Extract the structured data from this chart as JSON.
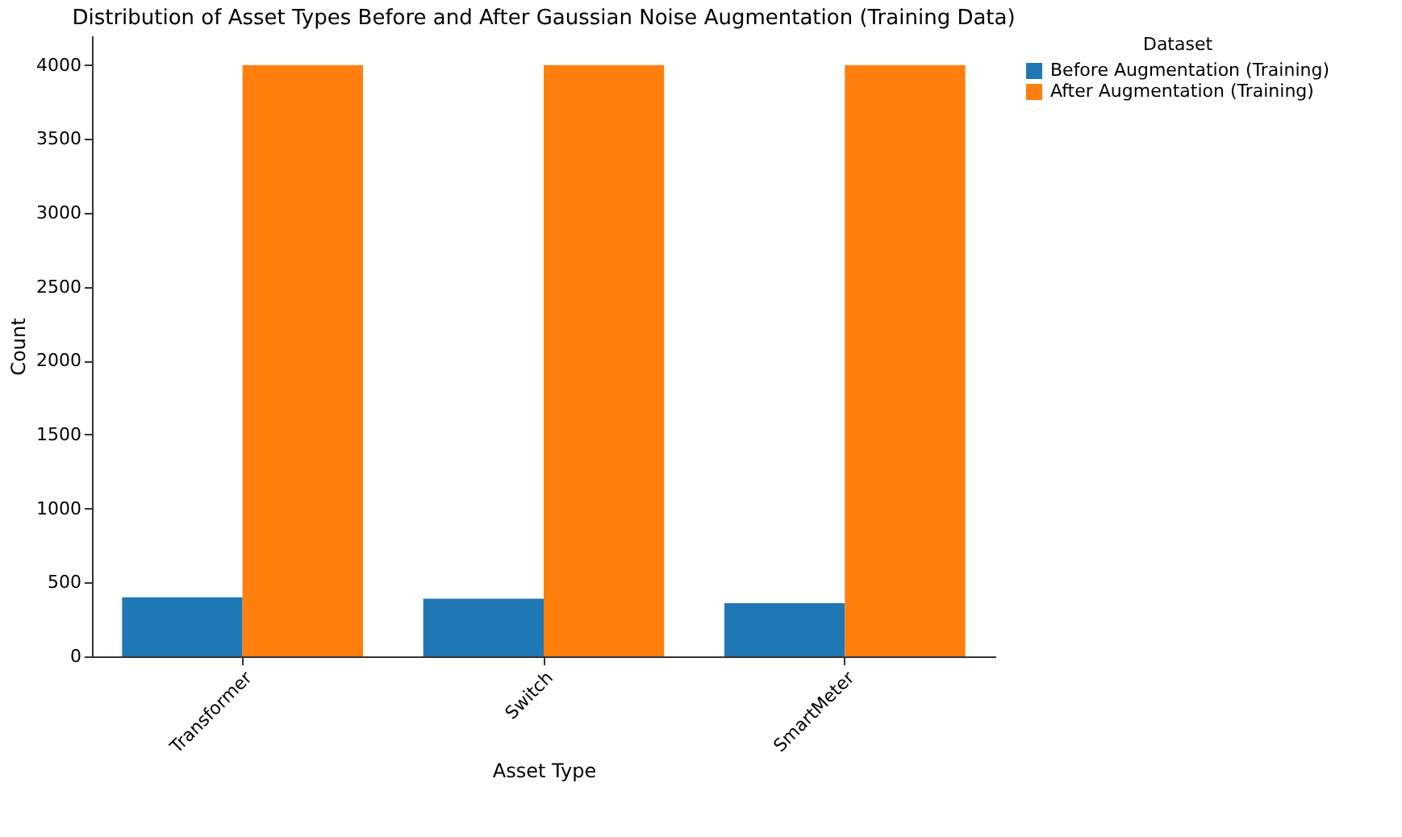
{
  "chart_data": {
    "type": "bar",
    "title": "Distribution of Asset Types Before and After Gaussian Noise Augmentation (Training Data)",
    "xlabel": "Asset Type",
    "ylabel": "Count",
    "legend_title": "Dataset",
    "categories": [
      "Transformer",
      "Switch",
      "SmartMeter"
    ],
    "series": [
      {
        "name": "Before Augmentation (Training)",
        "color": "#1f77b4",
        "values": [
          400,
          390,
          360
        ]
      },
      {
        "name": "After Augmentation (Training)",
        "color": "#ff7f0e",
        "values": [
          4000,
          4000,
          4000
        ]
      }
    ],
    "ylim": [
      0,
      4200
    ],
    "yticks": [
      0,
      500,
      1000,
      1500,
      2000,
      2500,
      3000,
      3500,
      4000
    ],
    "grid": false,
    "legend": "top right"
  }
}
